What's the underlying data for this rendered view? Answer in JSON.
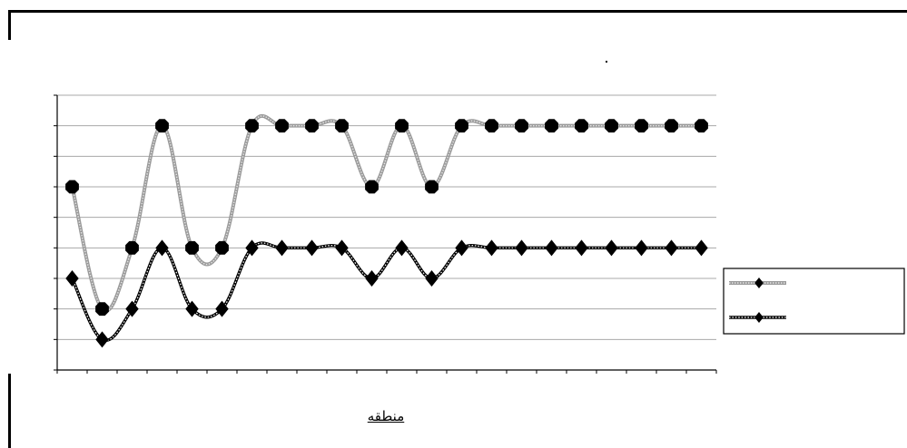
{
  "chart_data": {
    "type": "line",
    "title": "",
    "xlabel": "منطقه",
    "ylabel": "",
    "ylim": [
      0,
      9
    ],
    "grid": true,
    "legend_position": "right",
    "x": [
      1,
      2,
      3,
      4,
      5,
      6,
      7,
      8,
      9,
      10,
      11,
      12,
      13,
      14,
      15,
      16,
      17,
      18,
      19,
      20,
      21,
      22
    ],
    "series": [
      {
        "name": "",
        "style": "gray-textured",
        "marker": "octagon",
        "color": "#8c8c8c",
        "values": [
          6,
          2,
          4,
          8,
          4,
          4,
          8,
          8,
          8,
          8,
          6,
          8,
          6,
          8,
          8,
          8,
          8,
          8,
          8,
          8,
          8,
          8
        ]
      },
      {
        "name": "",
        "style": "dotted-black",
        "marker": "diamond",
        "color": "#000000",
        "values": [
          3,
          1,
          2,
          4,
          2,
          2,
          4,
          4,
          4,
          4,
          3,
          4,
          3,
          4,
          4,
          4,
          4,
          4,
          4,
          4,
          4,
          4
        ]
      }
    ]
  }
}
